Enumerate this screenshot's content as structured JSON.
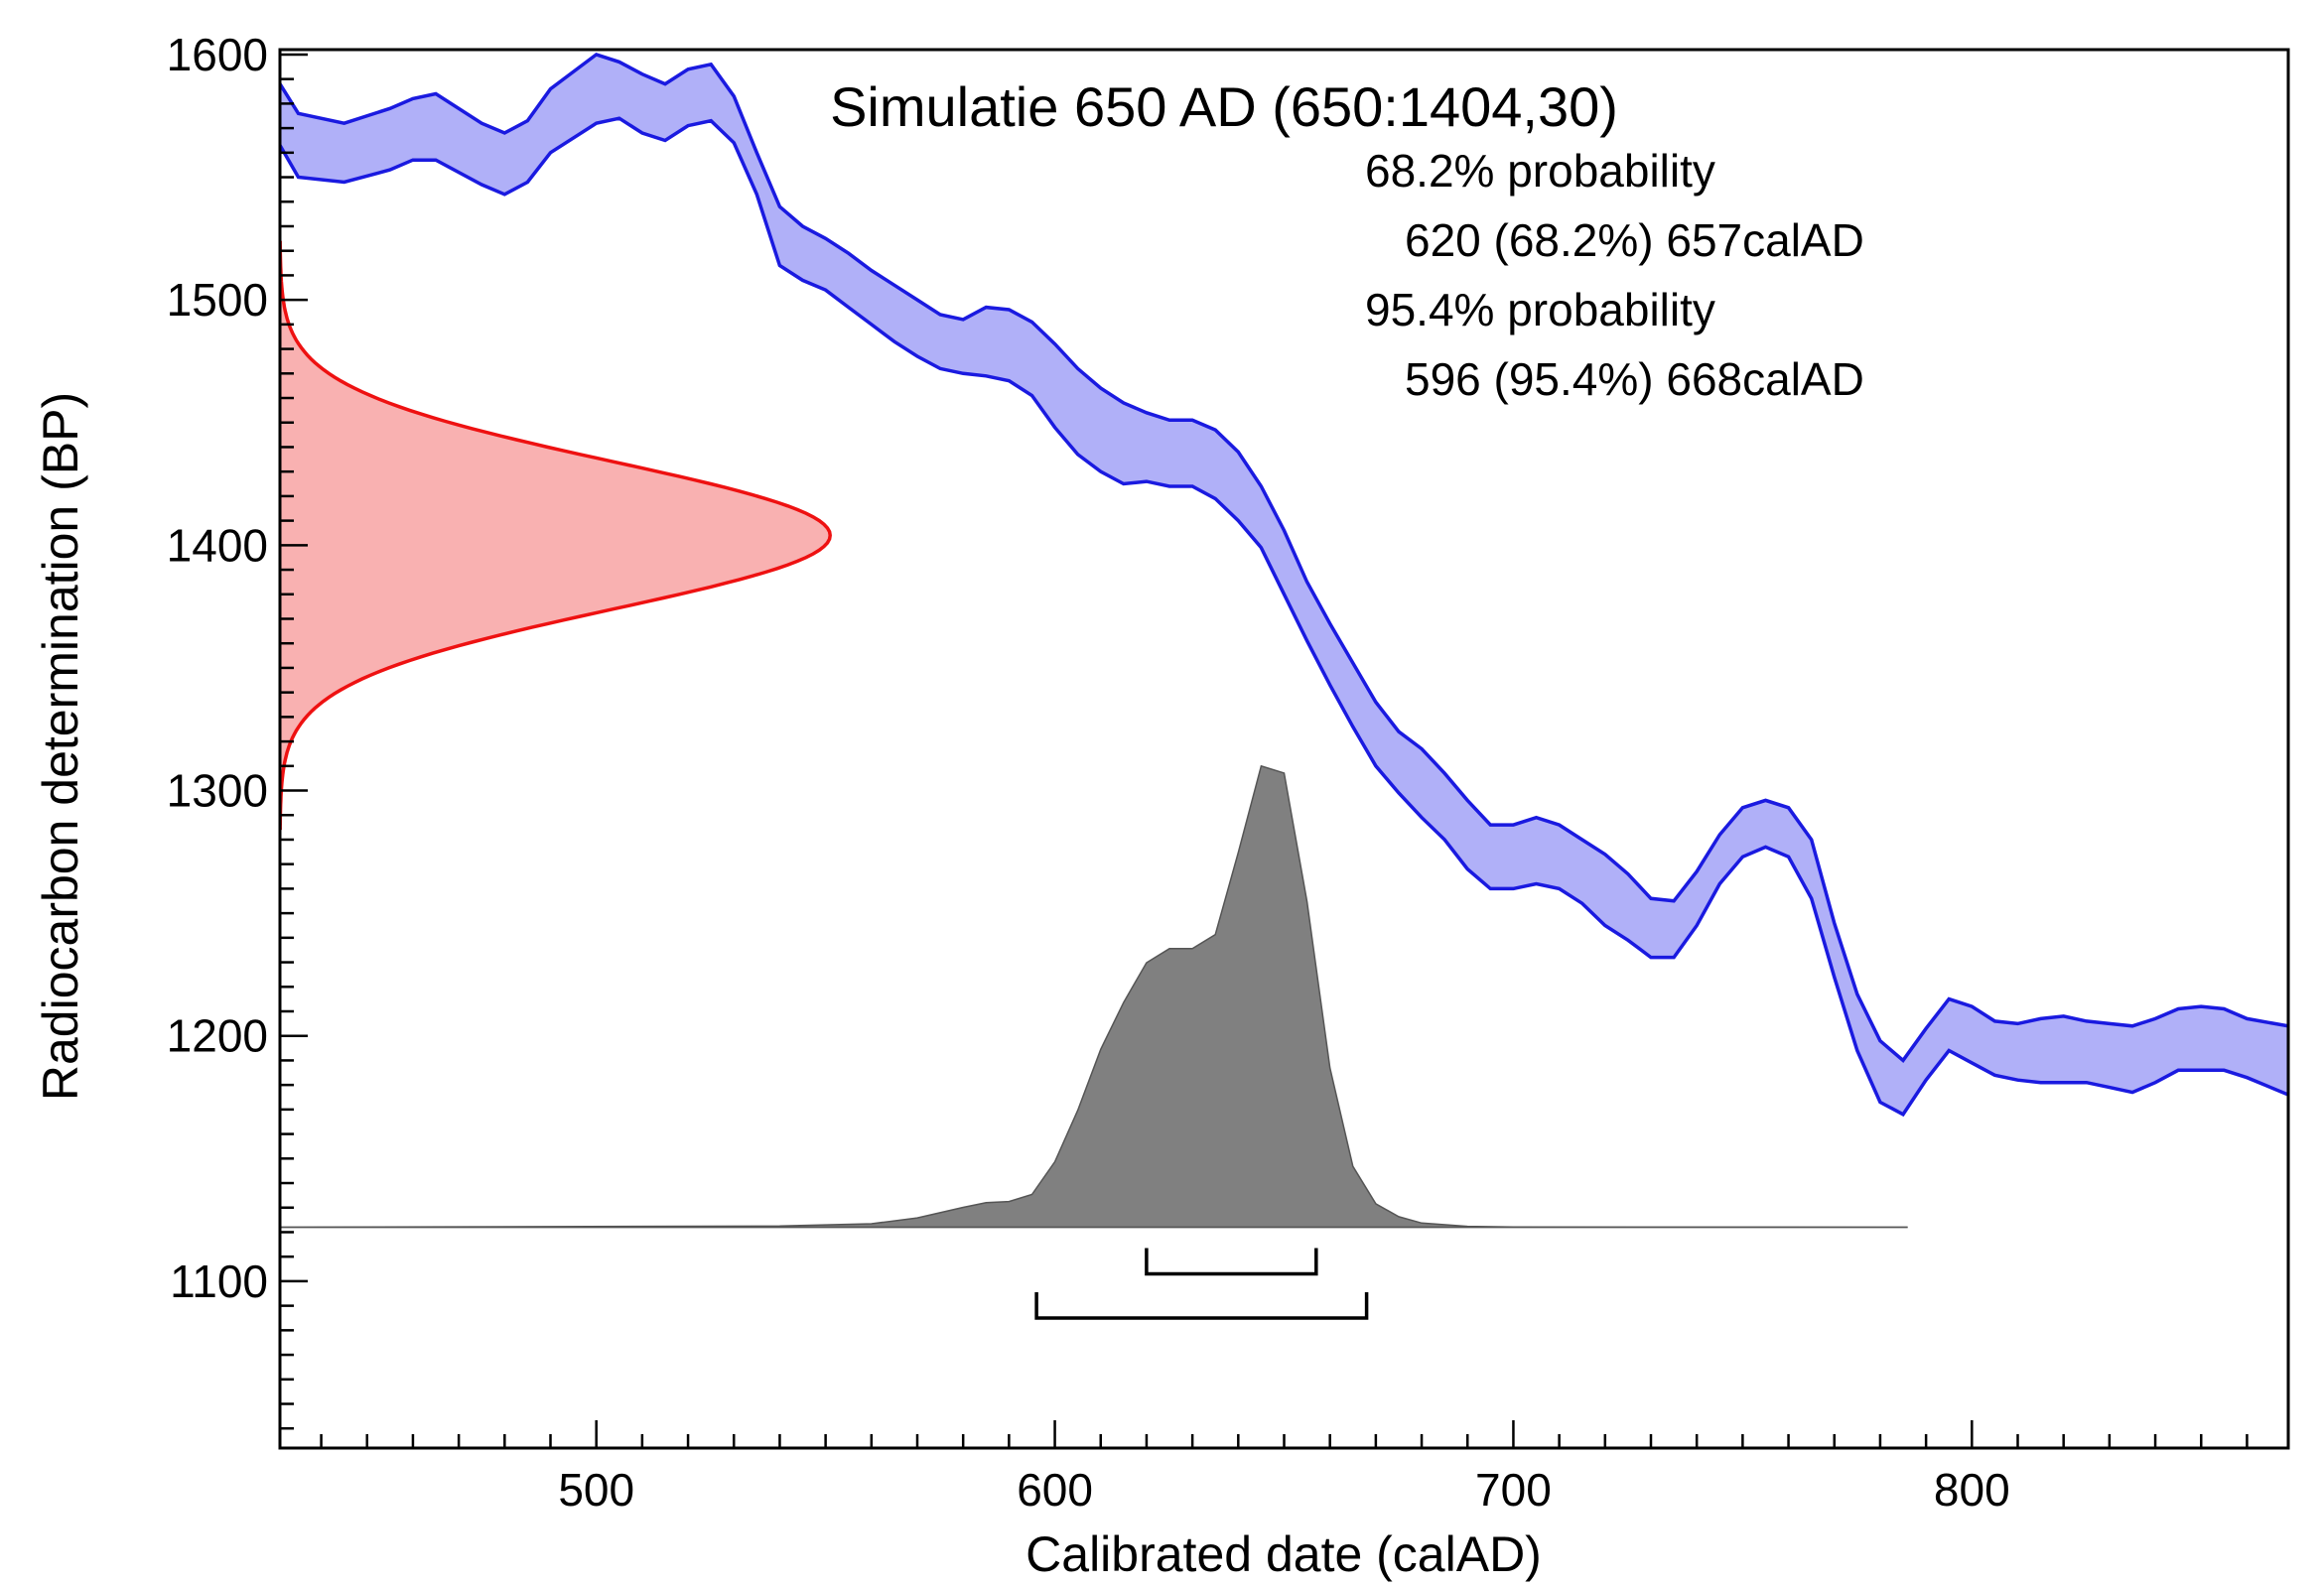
{
  "chart_data": {
    "type": "area",
    "title": "Simulatie 650 AD (650:1404,30)",
    "xlabel": "Calibrated date (calAD)",
    "ylabel": "Radiocarbon determination (BP)",
    "xlim": [
      431,
      869
    ],
    "ylim": [
      1032,
      1602
    ],
    "x_ticks": [
      500,
      600,
      700,
      800
    ],
    "y_ticks": [
      1100,
      1200,
      1300,
      1400,
      1500,
      1600
    ],
    "probability_text": [
      "68.2% probability",
      "620 (68.2%) 657calAD",
      "95.4% probability",
      "596 (95.4%) 668calAD"
    ],
    "colors": {
      "calibration_fill": "#b0b0f8",
      "calibration_line": "#1a1ae0",
      "measurement_fill": "#f9b1b1",
      "measurement_line": "#ee1111",
      "posterior_fill": "#808080",
      "posterior_line": "#555555"
    },
    "calibration_curve": {
      "name": "",
      "x": [
        431,
        435,
        445,
        455,
        460,
        465,
        475,
        480,
        485,
        490,
        500,
        505,
        510,
        515,
        520,
        525,
        530,
        535,
        540,
        545,
        550,
        555,
        560,
        565,
        570,
        575,
        580,
        585,
        590,
        595,
        600,
        605,
        610,
        615,
        620,
        625,
        630,
        635,
        640,
        645,
        650,
        655,
        660,
        665,
        670,
        675,
        680,
        685,
        690,
        695,
        700,
        705,
        710,
        715,
        720,
        725,
        730,
        735,
        740,
        745,
        750,
        755,
        760,
        765,
        770,
        775,
        780,
        785,
        790,
        795,
        800,
        805,
        810,
        815,
        820,
        825,
        830,
        835,
        840,
        845,
        850,
        855,
        860,
        869
      ],
      "upper": [
        1588,
        1576,
        1572,
        1578,
        1582,
        1584,
        1572,
        1568,
        1573,
        1586,
        1600,
        1597,
        1592,
        1588,
        1594,
        1596,
        1583,
        1560,
        1538,
        1530,
        1525,
        1519,
        1512,
        1506,
        1500,
        1494,
        1492,
        1497,
        1496,
        1491,
        1482,
        1472,
        1464,
        1458,
        1454,
        1451,
        1451,
        1447,
        1438,
        1424,
        1406,
        1385,
        1368,
        1352,
        1336,
        1324,
        1317,
        1307,
        1296,
        1286,
        1286,
        1289,
        1286,
        1280,
        1274,
        1266,
        1256,
        1255,
        1267,
        1282,
        1293,
        1296,
        1293,
        1280,
        1246,
        1217,
        1198,
        1190,
        1203,
        1215,
        1212,
        1206,
        1205,
        1207,
        1208,
        1206,
        1205,
        1204,
        1207,
        1211,
        1212,
        1211,
        1207,
        1204
      ],
      "lower": [
        1563,
        1550,
        1548,
        1553,
        1557,
        1557,
        1547,
        1543,
        1548,
        1560,
        1572,
        1574,
        1568,
        1565,
        1571,
        1573,
        1564,
        1543,
        1514,
        1508,
        1504,
        1497,
        1490,
        1483,
        1477,
        1472,
        1470,
        1469,
        1467,
        1461,
        1448,
        1437,
        1430,
        1425,
        1426,
        1424,
        1424,
        1419,
        1410,
        1399,
        1380,
        1361,
        1343,
        1326,
        1310,
        1299,
        1289,
        1280,
        1268,
        1260,
        1260,
        1262,
        1260,
        1254,
        1245,
        1239,
        1232,
        1232,
        1245,
        1262,
        1273,
        1277,
        1273,
        1256,
        1224,
        1194,
        1173,
        1168,
        1182,
        1194,
        1189,
        1184,
        1182,
        1181,
        1181,
        1181,
        1179,
        1177,
        1181,
        1186,
        1186,
        1186,
        1183,
        1176
      ]
    },
    "measurement": {
      "name": "",
      "mean_bp": 1404,
      "sigma_bp": 30,
      "peak_date": 551
    },
    "posterior": {
      "name": "",
      "baseline_bp": 1122,
      "peak_height_bp": 1310,
      "x": [
        431,
        540,
        560,
        570,
        580,
        585,
        590,
        595,
        600,
        605,
        610,
        615,
        620,
        625,
        630,
        635,
        640,
        645,
        650,
        655,
        660,
        665,
        670,
        675,
        680,
        690,
        700,
        786
      ],
      "density": [
        0,
        0.005,
        0.015,
        0.04,
        0.085,
        0.105,
        0.11,
        0.14,
        0.28,
        0.5,
        0.76,
        0.96,
        1.13,
        1.19,
        1.19,
        1.25,
        1.6,
        1.97,
        1.94,
        1.39,
        0.68,
        0.26,
        0.1,
        0.045,
        0.018,
        0.004,
        0.001,
        0
      ]
    },
    "ranges_68": [
      [
        620,
        657
      ]
    ],
    "ranges_95": [
      [
        596,
        668
      ]
    ]
  }
}
